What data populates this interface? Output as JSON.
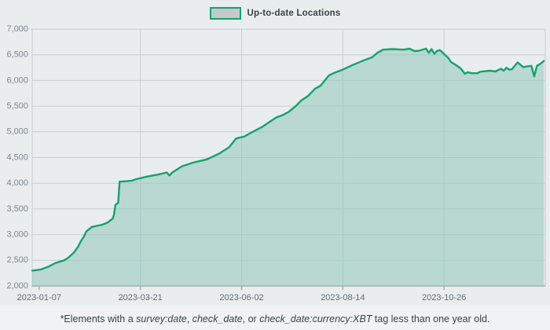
{
  "legend": {
    "label": "Up-to-date Locations",
    "swatch_fill": "#c6c8ca",
    "swatch_border": "#18a06e"
  },
  "footnote": {
    "segments": [
      {
        "text": "*Elements with a ",
        "italic": false
      },
      {
        "text": "survey:date",
        "italic": true
      },
      {
        "text": ", ",
        "italic": false
      },
      {
        "text": "check_date",
        "italic": true
      },
      {
        "text": ", or ",
        "italic": false
      },
      {
        "text": "check_date:currency:XBT",
        "italic": true
      },
      {
        "text": " tag less than one year old.",
        "italic": false
      }
    ]
  },
  "colors": {
    "background": "#e9edee",
    "grid": "#c5cfd2",
    "axis": "#9fb0b4",
    "y_label": "#79858d",
    "x_label": "#5f6d76",
    "line": "#18a06e",
    "area_fill": "#8fc7ba",
    "text": "#39434c"
  },
  "chart_data": {
    "type": "area",
    "title": "Up-to-date Locations",
    "xlabel": "",
    "ylabel": "",
    "grid": true,
    "legend_position": "top-center",
    "x_axis": {
      "type": "date",
      "min": "2023-01-02",
      "max": "2024-01-07",
      "ticks": [
        "2023-01-07",
        "2023-03-21",
        "2023-06-02",
        "2023-08-14",
        "2023-10-26"
      ]
    },
    "y_axis": {
      "min": 2000,
      "max": 7000,
      "tick_step": 500,
      "ticks": [
        2000,
        2500,
        3000,
        3500,
        4000,
        4500,
        5000,
        5500,
        6000,
        6500,
        7000
      ],
      "tick_labels": [
        "2,000",
        "2,500",
        "3,000",
        "3,500",
        "4,000",
        "4,500",
        "5,000",
        "5,500",
        "6,000",
        "6,500",
        "7,000"
      ]
    },
    "series": [
      {
        "name": "Up-to-date Locations",
        "color": "#18a06e",
        "fill": "#8fc7ba",
        "points": [
          [
            "2023-01-02",
            2300
          ],
          [
            "2023-01-08",
            2320
          ],
          [
            "2023-01-14",
            2380
          ],
          [
            "2023-01-19",
            2450
          ],
          [
            "2023-01-25",
            2500
          ],
          [
            "2023-01-28",
            2550
          ],
          [
            "2023-02-01",
            2650
          ],
          [
            "2023-02-04",
            2760
          ],
          [
            "2023-02-06",
            2870
          ],
          [
            "2023-02-08",
            2950
          ],
          [
            "2023-02-10",
            3060
          ],
          [
            "2023-02-14",
            3150
          ],
          [
            "2023-02-21",
            3190
          ],
          [
            "2023-02-25",
            3230
          ],
          [
            "2023-03-01",
            3310
          ],
          [
            "2023-03-02",
            3390
          ],
          [
            "2023-03-03",
            3580
          ],
          [
            "2023-03-05",
            3620
          ],
          [
            "2023-03-06",
            4030
          ],
          [
            "2023-03-11",
            4040
          ],
          [
            "2023-03-15",
            4050
          ],
          [
            "2023-03-18",
            4080
          ],
          [
            "2023-03-26",
            4130
          ],
          [
            "2023-04-03",
            4170
          ],
          [
            "2023-04-09",
            4210
          ],
          [
            "2023-04-11",
            4150
          ],
          [
            "2023-04-13",
            4210
          ],
          [
            "2023-04-20",
            4330
          ],
          [
            "2023-04-28",
            4400
          ],
          [
            "2023-05-08",
            4465
          ],
          [
            "2023-05-17",
            4580
          ],
          [
            "2023-05-24",
            4700
          ],
          [
            "2023-05-29",
            4870
          ],
          [
            "2023-06-04",
            4910
          ],
          [
            "2023-06-10",
            5000
          ],
          [
            "2023-06-17",
            5100
          ],
          [
            "2023-06-27",
            5280
          ],
          [
            "2023-07-02",
            5330
          ],
          [
            "2023-07-06",
            5390
          ],
          [
            "2023-07-11",
            5500
          ],
          [
            "2023-07-15",
            5610
          ],
          [
            "2023-07-20",
            5700
          ],
          [
            "2023-07-25",
            5840
          ],
          [
            "2023-07-29",
            5900
          ],
          [
            "2023-08-04",
            6100
          ],
          [
            "2023-08-08",
            6150
          ],
          [
            "2023-08-13",
            6200
          ],
          [
            "2023-08-21",
            6300
          ],
          [
            "2023-08-30",
            6400
          ],
          [
            "2023-09-04",
            6450
          ],
          [
            "2023-09-08",
            6540
          ],
          [
            "2023-09-12",
            6600
          ],
          [
            "2023-09-19",
            6610
          ],
          [
            "2023-09-27",
            6600
          ],
          [
            "2023-10-01",
            6620
          ],
          [
            "2023-10-05",
            6570
          ],
          [
            "2023-10-08",
            6580
          ],
          [
            "2023-10-13",
            6620
          ],
          [
            "2023-10-15",
            6540
          ],
          [
            "2023-10-17",
            6610
          ],
          [
            "2023-10-19",
            6520
          ],
          [
            "2023-10-21",
            6575
          ],
          [
            "2023-10-23",
            6590
          ],
          [
            "2023-10-26",
            6515
          ],
          [
            "2023-10-29",
            6440
          ],
          [
            "2023-10-31",
            6360
          ],
          [
            "2023-11-03",
            6310
          ],
          [
            "2023-11-07",
            6235
          ],
          [
            "2023-11-10",
            6130
          ],
          [
            "2023-11-12",
            6160
          ],
          [
            "2023-11-15",
            6140
          ],
          [
            "2023-11-19",
            6140
          ],
          [
            "2023-11-21",
            6170
          ],
          [
            "2023-11-25",
            6180
          ],
          [
            "2023-11-28",
            6190
          ],
          [
            "2023-12-02",
            6175
          ],
          [
            "2023-12-06",
            6230
          ],
          [
            "2023-12-08",
            6190
          ],
          [
            "2023-12-10",
            6250
          ],
          [
            "2023-12-12",
            6210
          ],
          [
            "2023-12-14",
            6220
          ],
          [
            "2023-12-18",
            6350
          ],
          [
            "2023-12-19",
            6330
          ],
          [
            "2023-12-22",
            6260
          ],
          [
            "2023-12-25",
            6275
          ],
          [
            "2023-12-28",
            6285
          ],
          [
            "2023-12-29",
            6180
          ],
          [
            "2023-12-30",
            6080
          ],
          [
            "2024-01-01",
            6285
          ],
          [
            "2024-01-04",
            6335
          ],
          [
            "2024-01-06",
            6380
          ]
        ]
      }
    ]
  }
}
